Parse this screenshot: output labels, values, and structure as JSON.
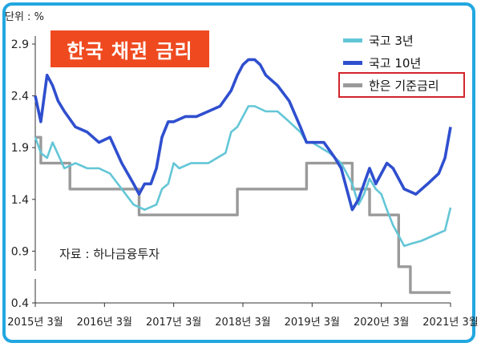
{
  "chart_data": {
    "type": "line",
    "title": "한국 채권 금리",
    "unit_label": "단위 : %",
    "source_note": "자료 : 하나금융투자",
    "x_tick_labels": [
      "2015년 3월",
      "2016년 3월",
      "2017년 3월",
      "2018년 3월",
      "2019년 3월",
      "2020년 3월",
      "2021년 3월"
    ],
    "y_tick_labels": [
      "2.9",
      "2.4",
      "1.9",
      "1.4",
      "0.9",
      "0.4"
    ],
    "ylim": [
      0.4,
      2.9
    ],
    "xlim": [
      2015.0,
      2021.0
    ],
    "grid": false,
    "legend_position": "top-right",
    "colors": {
      "treasury_3y": "#63c6d6",
      "treasury_10y": "#2f4fcf",
      "base_rate": "#9a9a9a",
      "title_bg": "#ef4a1f",
      "frame": "#22a7e0",
      "legend_box": "#d3252b"
    },
    "series": [
      {
        "name": "국고 3년",
        "x": [
          2015.0,
          2015.08,
          2015.17,
          2015.25,
          2015.42,
          2015.58,
          2015.75,
          2015.92,
          2016.08,
          2016.25,
          2016.42,
          2016.58,
          2016.75,
          2016.83,
          2016.92,
          2017.0,
          2017.08,
          2017.25,
          2017.5,
          2017.75,
          2017.83,
          2017.92,
          2018.0,
          2018.08,
          2018.17,
          2018.33,
          2018.5,
          2018.67,
          2018.83,
          2018.92,
          2019.0,
          2019.25,
          2019.42,
          2019.58,
          2019.67,
          2019.75,
          2019.83,
          2019.92,
          2020.0,
          2020.08,
          2020.17,
          2020.25,
          2020.33,
          2020.42,
          2020.58,
          2020.75,
          2020.92,
          2021.0
        ],
        "values": [
          2.0,
          1.85,
          1.8,
          1.95,
          1.7,
          1.75,
          1.7,
          1.7,
          1.65,
          1.5,
          1.35,
          1.3,
          1.35,
          1.5,
          1.55,
          1.75,
          1.7,
          1.75,
          1.75,
          1.85,
          2.05,
          2.1,
          2.2,
          2.3,
          2.3,
          2.25,
          2.25,
          2.15,
          2.05,
          1.95,
          1.95,
          1.85,
          1.75,
          1.55,
          1.35,
          1.45,
          1.6,
          1.5,
          1.45,
          1.3,
          1.15,
          1.05,
          0.95,
          0.97,
          1.0,
          1.05,
          1.1,
          1.32
        ]
      },
      {
        "name": "국고 10년",
        "x": [
          2015.0,
          2015.08,
          2015.17,
          2015.25,
          2015.33,
          2015.42,
          2015.58,
          2015.75,
          2015.92,
          2016.08,
          2016.25,
          2016.42,
          2016.5,
          2016.58,
          2016.67,
          2016.75,
          2016.83,
          2016.92,
          2017.0,
          2017.17,
          2017.33,
          2017.5,
          2017.67,
          2017.83,
          2017.92,
          2018.0,
          2018.08,
          2018.17,
          2018.25,
          2018.33,
          2018.5,
          2018.67,
          2018.83,
          2018.92,
          2019.0,
          2019.17,
          2019.33,
          2019.42,
          2019.5,
          2019.58,
          2019.67,
          2019.75,
          2019.83,
          2019.92,
          2020.0,
          2020.08,
          2020.17,
          2020.25,
          2020.33,
          2020.5,
          2020.67,
          2020.83,
          2020.92,
          2021.0
        ],
        "values": [
          2.4,
          2.15,
          2.6,
          2.5,
          2.35,
          2.25,
          2.1,
          2.05,
          1.95,
          2.0,
          1.75,
          1.55,
          1.45,
          1.55,
          1.55,
          1.7,
          2.0,
          2.15,
          2.15,
          2.2,
          2.2,
          2.25,
          2.3,
          2.45,
          2.6,
          2.7,
          2.75,
          2.75,
          2.7,
          2.6,
          2.5,
          2.35,
          2.1,
          1.95,
          1.95,
          1.95,
          1.8,
          1.7,
          1.5,
          1.3,
          1.4,
          1.55,
          1.7,
          1.55,
          1.65,
          1.75,
          1.7,
          1.6,
          1.5,
          1.45,
          1.55,
          1.65,
          1.8,
          2.1
        ]
      },
      {
        "name": "한은 기준금리",
        "step": true,
        "x": [
          2015.0,
          2015.08,
          2015.25,
          2015.5,
          2016.5,
          2017.0,
          2017.92,
          2018.0,
          2018.92,
          2019.0,
          2019.58,
          2019.67,
          2019.83,
          2020.0,
          2020.25,
          2020.33,
          2020.42,
          2021.0
        ],
        "values": [
          2.0,
          1.75,
          1.75,
          1.5,
          1.25,
          1.25,
          1.5,
          1.5,
          1.75,
          1.75,
          1.5,
          1.5,
          1.25,
          1.25,
          0.75,
          0.75,
          0.5,
          0.5
        ]
      }
    ]
  }
}
